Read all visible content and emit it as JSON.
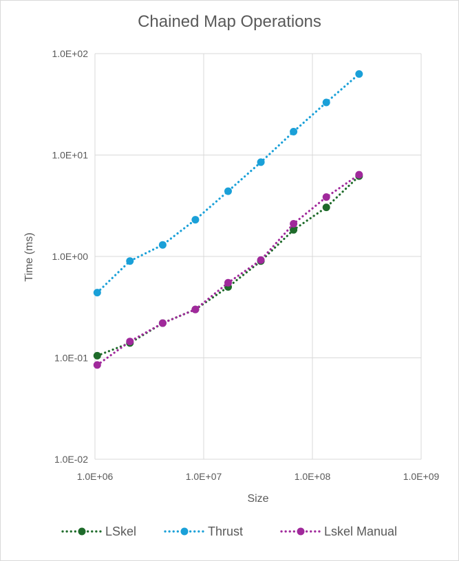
{
  "chart_data": {
    "type": "line",
    "title": "Chained Map Operations",
    "xlabel": "Size",
    "ylabel": "Time (ms)",
    "x_scale": "log",
    "y_scale": "log",
    "xlim": [
      1000000,
      1000000000
    ],
    "ylim": [
      0.01,
      100
    ],
    "x_ticks": [
      1000000,
      10000000,
      100000000,
      1000000000
    ],
    "x_tick_labels": [
      "1.0E+06",
      "1.0E+07",
      "1.0E+08",
      "1.0E+09"
    ],
    "y_ticks": [
      0.01,
      0.1,
      1,
      10,
      100
    ],
    "y_tick_labels": [
      "1.0E-02",
      "1.0E-01",
      "1.0E+00",
      "1.0E+01",
      "1.0E+02"
    ],
    "grid": true,
    "legend_position": "bottom",
    "x": [
      1048576,
      2097152,
      4194304,
      8388608,
      16777216,
      33554432,
      67108864,
      134217728,
      268435456
    ],
    "series": [
      {
        "name": "LSkel",
        "color": "#1e6b2a",
        "values": [
          0.105,
          0.14,
          0.22,
          0.3,
          0.5,
          0.9,
          1.83,
          3.05,
          6.2
        ]
      },
      {
        "name": "Thrust",
        "color": "#1aa0d8",
        "values": [
          0.44,
          0.9,
          1.3,
          2.3,
          4.4,
          8.5,
          17.0,
          33.0,
          63.0
        ]
      },
      {
        "name": "Lskel Manual",
        "color": "#a0299b",
        "values": [
          0.085,
          0.145,
          0.22,
          0.3,
          0.55,
          0.92,
          2.1,
          3.85,
          6.4
        ]
      }
    ]
  }
}
